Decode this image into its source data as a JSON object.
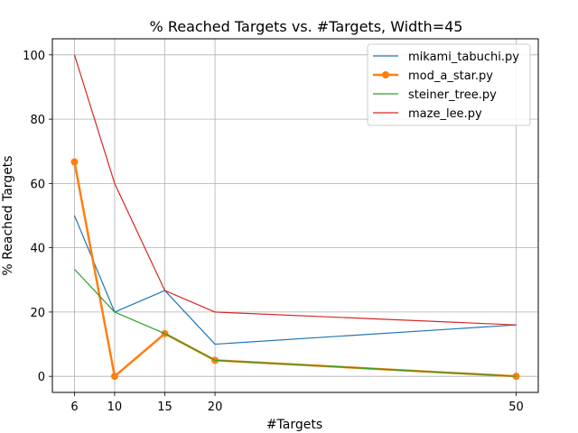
{
  "chart_data": {
    "type": "line",
    "title": "% Reached Targets vs. #Targets, Width=45",
    "xlabel": "#Targets",
    "ylabel": "% Reached Targets",
    "x": [
      6,
      10,
      15,
      20,
      50
    ],
    "xticks": [
      6,
      10,
      15,
      20,
      50
    ],
    "yticks": [
      0,
      20,
      40,
      60,
      80,
      100
    ],
    "xlim": [
      3.8,
      52.2
    ],
    "ylim": [
      -5,
      105
    ],
    "grid": true,
    "legend_position": "top-right",
    "series": [
      {
        "name": "mikami_tabuchi.py",
        "color": "#1f77b4",
        "marker": false,
        "bold": false,
        "values": [
          50,
          20,
          26.7,
          10,
          16
        ]
      },
      {
        "name": "mod_a_star.py",
        "color": "#ff7f0e",
        "marker": true,
        "bold": true,
        "values": [
          66.7,
          0,
          13.3,
          5,
          0
        ]
      },
      {
        "name": "steiner_tree.py",
        "color": "#2ca02c",
        "marker": false,
        "bold": false,
        "values": [
          33.3,
          20,
          13.3,
          5,
          0
        ]
      },
      {
        "name": "maze_lee.py",
        "color": "#d62728",
        "marker": false,
        "bold": false,
        "values": [
          100,
          60,
          26.7,
          20,
          16
        ]
      }
    ]
  }
}
